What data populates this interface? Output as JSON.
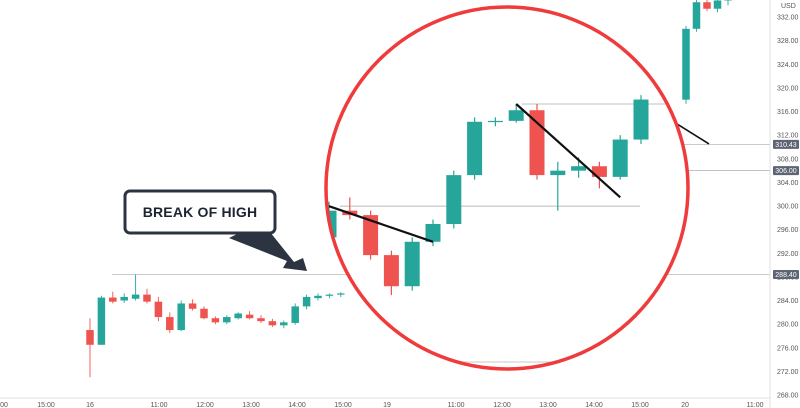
{
  "chart_data": {
    "type": "candlestick",
    "currency": "USD",
    "y_ticks": [
      "332.00",
      "328.00",
      "324.00",
      "320.00",
      "316.00",
      "312.00",
      "308.00",
      "304.00",
      "300.00",
      "296.00",
      "292.00",
      "288.00",
      "284.00",
      "280.00",
      "276.00",
      "272.00",
      "268.00"
    ],
    "ylim": [
      268,
      336
    ],
    "x_ticks": [
      "00",
      "15:00",
      "16",
      "11:00",
      "12:00",
      "13:00",
      "14:00",
      "15:00",
      "19",
      "11:00",
      "12:00",
      "13:00",
      "14:00",
      "15:00",
      "20",
      "11:00"
    ],
    "price_tags": [
      {
        "label": "310.43",
        "value": 310.43
      },
      {
        "label": "306.00",
        "value": 306.0
      },
      {
        "label": "288.40",
        "value": 288.4
      }
    ],
    "up_color": "#26a69a",
    "down_color": "#ef5350",
    "highlight_circle_color": "#ef3b3b",
    "callout_label": "BREAK OF HIGH",
    "outer_candles": [
      {
        "o": 279.0,
        "h": 281.0,
        "l": 271.0,
        "c": 276.5
      },
      {
        "o": 276.5,
        "h": 284.8,
        "l": 276.5,
        "c": 284.5
      },
      {
        "o": 284.5,
        "h": 285.5,
        "l": 283.5,
        "c": 283.8
      },
      {
        "o": 284.0,
        "h": 285.2,
        "l": 283.6,
        "c": 284.6
      },
      {
        "o": 284.3,
        "h": 288.4,
        "l": 284.0,
        "c": 285.0
      },
      {
        "o": 285.0,
        "h": 286.0,
        "l": 283.5,
        "c": 283.8
      },
      {
        "o": 283.8,
        "h": 284.6,
        "l": 280.5,
        "c": 281.2
      },
      {
        "o": 281.2,
        "h": 282.0,
        "l": 278.5,
        "c": 279.0
      },
      {
        "o": 279.0,
        "h": 284.0,
        "l": 278.8,
        "c": 283.5
      },
      {
        "o": 283.5,
        "h": 284.2,
        "l": 282.3,
        "c": 282.6
      },
      {
        "o": 282.6,
        "h": 283.0,
        "l": 280.8,
        "c": 281.0
      },
      {
        "o": 281.0,
        "h": 281.3,
        "l": 280.0,
        "c": 280.3
      },
      {
        "o": 280.3,
        "h": 281.5,
        "l": 280.0,
        "c": 281.2
      },
      {
        "o": 281.0,
        "h": 282.0,
        "l": 280.8,
        "c": 281.8
      },
      {
        "o": 281.6,
        "h": 282.2,
        "l": 280.8,
        "c": 281.0
      },
      {
        "o": 281.0,
        "h": 281.5,
        "l": 280.2,
        "c": 280.5
      },
      {
        "o": 280.5,
        "h": 280.9,
        "l": 279.5,
        "c": 279.8
      },
      {
        "o": 279.8,
        "h": 280.6,
        "l": 279.3,
        "c": 280.3
      },
      {
        "o": 280.2,
        "h": 283.5,
        "l": 279.9,
        "c": 283.0
      },
      {
        "o": 283.0,
        "h": 285.0,
        "l": 282.5,
        "c": 284.6
      },
      {
        "o": 284.4,
        "h": 285.2,
        "l": 284.0,
        "c": 284.8
      },
      {
        "o": 284.8,
        "h": 285.2,
        "l": 284.4,
        "c": 285.0
      },
      {
        "o": 285.0,
        "h": 285.4,
        "l": 284.6,
        "c": 285.2
      }
    ],
    "inner_candles": [
      {
        "o": 302.5,
        "h": 306.5,
        "l": 300.0,
        "c": 305.5
      },
      {
        "o": 305.5,
        "h": 307.0,
        "l": 304.5,
        "c": 305.0
      },
      {
        "o": 305.0,
        "h": 305.5,
        "l": 300.0,
        "c": 300.5
      },
      {
        "o": 300.5,
        "h": 301.0,
        "l": 296.0,
        "c": 297.0
      },
      {
        "o": 297.0,
        "h": 302.5,
        "l": 296.5,
        "c": 302.0
      },
      {
        "o": 302.0,
        "h": 304.5,
        "l": 301.5,
        "c": 304.0
      },
      {
        "o": 304.0,
        "h": 310.0,
        "l": 303.5,
        "c": 309.5
      },
      {
        "o": 309.5,
        "h": 316.0,
        "l": 309.0,
        "c": 315.5
      },
      {
        "o": 315.5,
        "h": 316.0,
        "l": 315.0,
        "c": 315.6
      },
      {
        "o": 315.6,
        "h": 317.5,
        "l": 315.4,
        "c": 316.8
      },
      {
        "o": 316.8,
        "h": 317.5,
        "l": 309.0,
        "c": 309.5
      },
      {
        "o": 309.5,
        "h": 311.0,
        "l": 305.5,
        "c": 310.0
      },
      {
        "o": 310.0,
        "h": 311.5,
        "l": 309.2,
        "c": 310.5
      },
      {
        "o": 310.5,
        "h": 311.0,
        "l": 308.0,
        "c": 309.3
      },
      {
        "o": 309.3,
        "h": 314.0,
        "l": 309.0,
        "c": 313.5
      },
      {
        "o": 313.5,
        "h": 318.5,
        "l": 313.0,
        "c": 318.0
      }
    ],
    "right_candles": [
      {
        "o": 318.0,
        "h": 330.5,
        "l": 317.3,
        "c": 330.0
      },
      {
        "o": 330.0,
        "h": 335.0,
        "l": 329.5,
        "c": 334.5
      },
      {
        "o": 334.5,
        "h": 336.0,
        "l": 333.0,
        "c": 333.4
      },
      {
        "o": 333.4,
        "h": 336.0,
        "l": 332.8,
        "c": 334.8
      },
      {
        "o": 334.8,
        "h": 336.0,
        "l": 334.0,
        "c": 335.5
      }
    ],
    "inner_levels": [
      306.0,
      317.5
    ],
    "inner_bottom_level": 272.8,
    "inner_trendlines": [
      {
        "from": {
          "candle": 0,
          "price": 306.0
        },
        "to": {
          "candle": 5,
          "price": 302.0
        }
      },
      {
        "from": {
          "candle": 9,
          "price": 317.5
        },
        "to": {
          "candle": 14,
          "price": 307.0
        }
      }
    ],
    "outer_trendline": {
      "from_price": 314.0,
      "to_price": 310.5
    }
  }
}
